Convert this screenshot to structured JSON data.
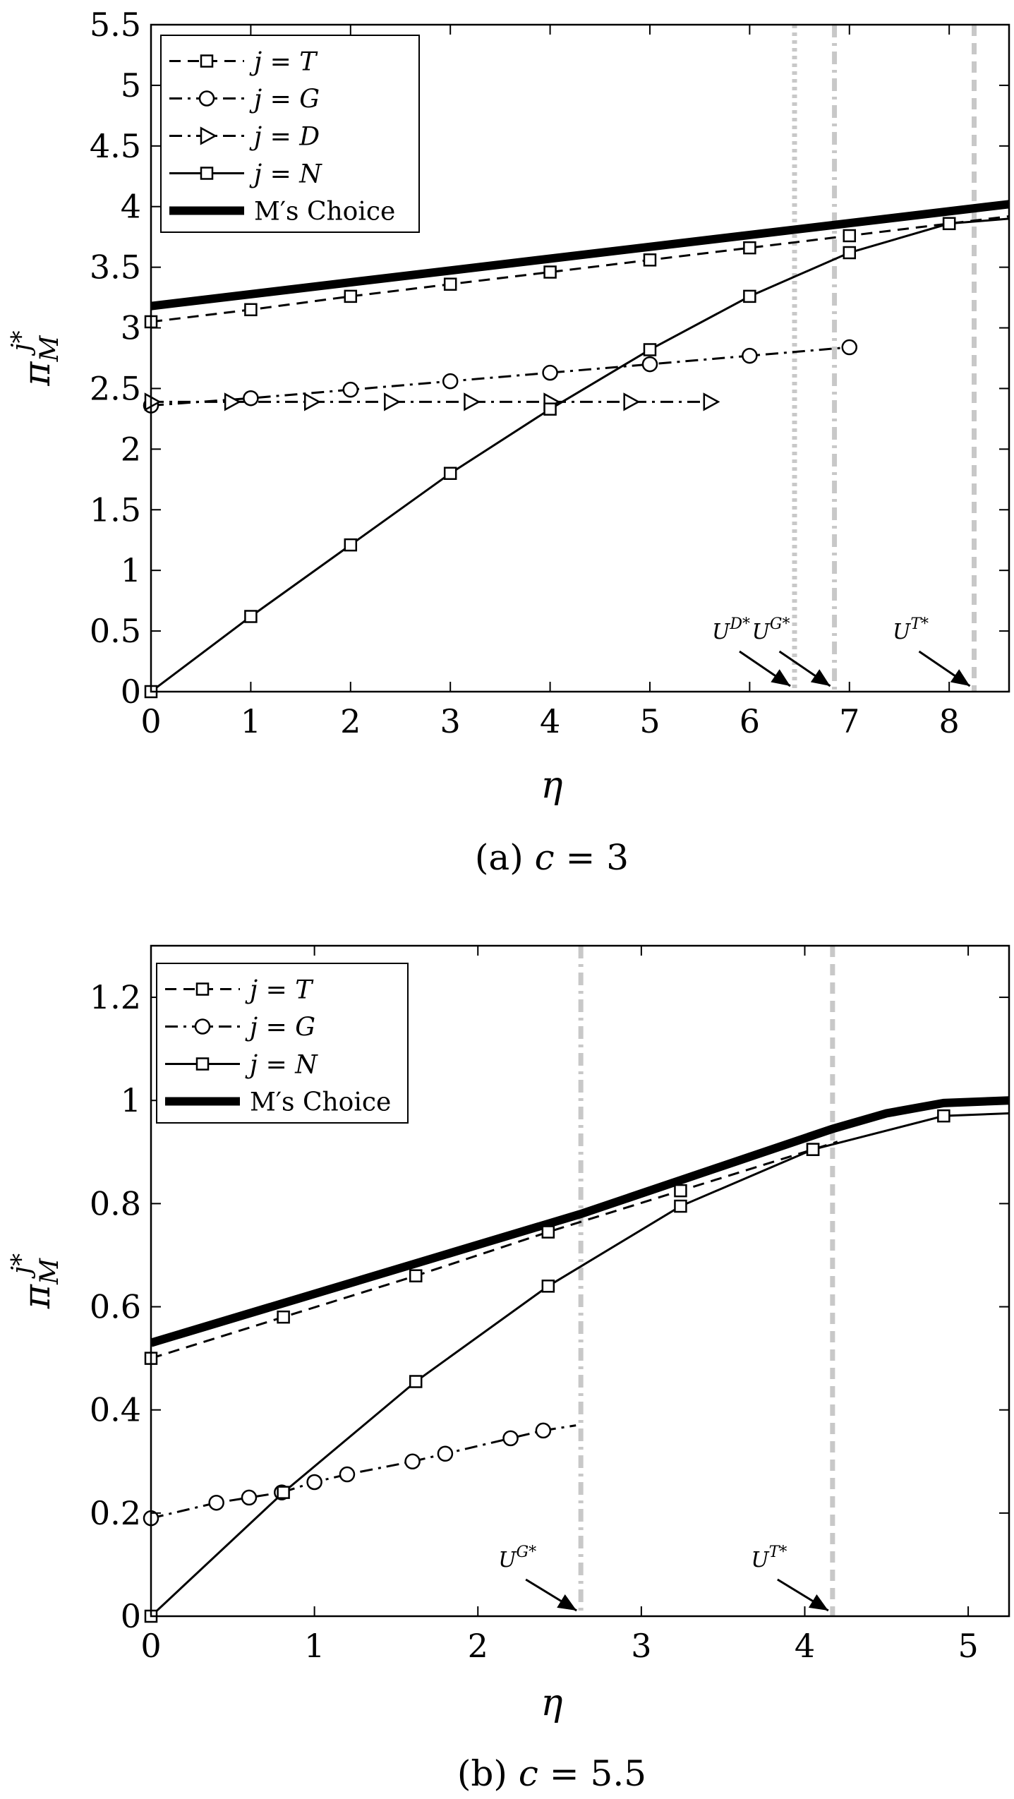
{
  "chart_data": [
    {
      "type": "line",
      "caption": "(a)  c = 3",
      "xlabel": "η",
      "ylabel": "π_M^{j*}",
      "xlim": [
        0,
        8.6
      ],
      "ylim": [
        0,
        5.5
      ],
      "xticks": [
        0,
        1,
        2,
        3,
        4,
        5,
        6,
        7,
        8
      ],
      "yticks": [
        0,
        0.5,
        1,
        1.5,
        2,
        2.5,
        3,
        3.5,
        4,
        4.5,
        5,
        5.5
      ],
      "legend_position": "top-left",
      "series": [
        {
          "name": "j = T",
          "style": "dashed",
          "marker": "square",
          "x": [
            0,
            1,
            2,
            3,
            4,
            5,
            6,
            7,
            8,
            8.6
          ],
          "y": [
            3.05,
            3.15,
            3.26,
            3.36,
            3.46,
            3.56,
            3.66,
            3.76,
            3.86,
            3.92
          ],
          "marker_x": [
            0,
            1,
            2,
            3,
            4,
            5,
            6,
            7,
            8
          ]
        },
        {
          "name": "j = G",
          "style": "dashdot",
          "marker": "circle",
          "x": [
            0,
            1,
            2,
            3,
            4,
            5,
            6,
            7
          ],
          "y": [
            2.36,
            2.42,
            2.49,
            2.56,
            2.63,
            2.7,
            2.77,
            2.84
          ],
          "marker_x": [
            0,
            1,
            2,
            3,
            4,
            5,
            6,
            7
          ]
        },
        {
          "name": "j = D",
          "style": "dashdot",
          "marker": "triangle-right",
          "x": [
            0,
            0.8,
            1.6,
            2.4,
            3.2,
            4.0,
            4.8,
            5.6
          ],
          "y": [
            2.39,
            2.39,
            2.39,
            2.39,
            2.39,
            2.39,
            2.39,
            2.39
          ],
          "marker_x": [
            0,
            0.8,
            1.6,
            2.4,
            3.2,
            4.0,
            4.8,
            5.6
          ]
        },
        {
          "name": "j = N",
          "style": "solid",
          "marker": "square",
          "x": [
            0,
            1,
            2,
            3,
            4,
            5,
            6,
            7,
            8,
            8.6
          ],
          "y": [
            0,
            0.62,
            1.21,
            1.8,
            2.33,
            2.82,
            3.26,
            3.62,
            3.86,
            3.9
          ],
          "marker_x": [
            0,
            1,
            2,
            3,
            4,
            5,
            6,
            7,
            8
          ]
        },
        {
          "name": "M′s Choice",
          "style": "thick",
          "x": [
            0,
            8.6
          ],
          "y": [
            3.18,
            4.02
          ]
        }
      ],
      "vlines": [
        {
          "label": "U^{D*}",
          "x": 6.45,
          "style": "dotted",
          "color": "#c8c8c8"
        },
        {
          "label": "U^{G*}",
          "x": 6.85,
          "style": "dashdot",
          "color": "#c8c8c8"
        },
        {
          "label": "U^{T*}",
          "x": 8.25,
          "style": "dashed",
          "color": "#c8c8c8"
        }
      ]
    },
    {
      "type": "line",
      "caption": "(b)  c = 5.5",
      "xlabel": "η",
      "ylabel": "π_M^{j*}",
      "xlim": [
        0,
        5.25
      ],
      "ylim": [
        0,
        1.3
      ],
      "xticks": [
        0,
        1,
        2,
        3,
        4,
        5
      ],
      "yticks": [
        0,
        0.2,
        0.4,
        0.6,
        0.8,
        1,
        1.2
      ],
      "legend_position": "top-left",
      "series": [
        {
          "name": "j = T",
          "style": "dashed",
          "marker": "square",
          "x": [
            0,
            0.81,
            1.62,
            2.43,
            3.24,
            4.05,
            4.2
          ],
          "y": [
            0.5,
            0.58,
            0.66,
            0.745,
            0.825,
            0.905,
            0.92
          ],
          "marker_x": [
            0,
            0.81,
            1.62,
            2.43,
            3.24,
            4.05
          ]
        },
        {
          "name": "j = G",
          "style": "dashdot",
          "marker": "circle",
          "x": [
            0,
            0.4,
            0.6,
            0.8,
            1.0,
            1.2,
            1.6,
            1.8,
            2.2,
            2.4,
            2.6
          ],
          "y": [
            0.19,
            0.22,
            0.23,
            0.24,
            0.26,
            0.275,
            0.3,
            0.315,
            0.345,
            0.36,
            0.37
          ],
          "marker_x": [
            0,
            0.4,
            0.6,
            0.8,
            1.0,
            1.2,
            1.6,
            1.8,
            2.2,
            2.4
          ]
        },
        {
          "name": "j = N",
          "style": "solid",
          "marker": "square",
          "x": [
            0,
            0.81,
            1.62,
            2.43,
            3.24,
            4.05,
            4.85,
            5.25
          ],
          "y": [
            0,
            0.24,
            0.455,
            0.64,
            0.795,
            0.905,
            0.97,
            0.975
          ],
          "marker_x": [
            0,
            0.81,
            1.62,
            2.43,
            3.24,
            4.05,
            4.85
          ]
        },
        {
          "name": "M′s Choice",
          "style": "thick",
          "x": [
            0,
            2.63,
            4.17,
            4.5,
            4.85,
            5.25
          ],
          "y": [
            0.53,
            0.78,
            0.945,
            0.975,
            0.995,
            1.0
          ]
        }
      ],
      "vlines": [
        {
          "label": "U^{G*}",
          "x": 2.63,
          "style": "dashdot",
          "color": "#c8c8c8"
        },
        {
          "label": "U^{T*}",
          "x": 4.17,
          "style": "dashed",
          "color": "#c8c8c8"
        }
      ]
    }
  ]
}
